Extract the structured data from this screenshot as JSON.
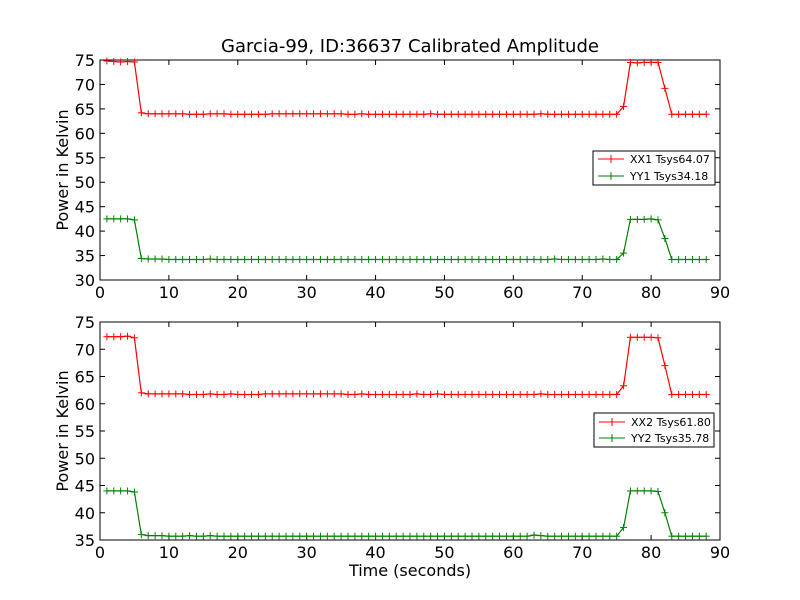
{
  "chart_data": [
    {
      "type": "line",
      "title": "Garcia-99, ID:36637 Calibrated Amplitude",
      "xlabel": "",
      "ylabel": "Power in Kelvin",
      "xlim": [
        0,
        90
      ],
      "ylim": [
        30,
        75
      ],
      "xticks": [
        "0",
        "10",
        "20",
        "30",
        "40",
        "50",
        "60",
        "70",
        "80",
        "90"
      ],
      "yticks": [
        "30",
        "35",
        "40",
        "45",
        "50",
        "55",
        "60",
        "65",
        "70",
        "75"
      ],
      "legend_position": "center-right",
      "series": [
        {
          "name": "XX1 Tsys64.07",
          "color": "#ff0000",
          "x": [
            1,
            2,
            3,
            4,
            5,
            6,
            7,
            8,
            9,
            10,
            11,
            12,
            13,
            14,
            15,
            16,
            17,
            18,
            19,
            20,
            21,
            22,
            23,
            24,
            25,
            26,
            27,
            28,
            29,
            30,
            31,
            32,
            33,
            34,
            35,
            36,
            37,
            38,
            39,
            40,
            41,
            42,
            43,
            44,
            45,
            46,
            47,
            48,
            49,
            50,
            51,
            52,
            53,
            54,
            55,
            56,
            57,
            58,
            59,
            60,
            61,
            62,
            63,
            64,
            65,
            66,
            67,
            68,
            69,
            70,
            71,
            72,
            73,
            74,
            75,
            76,
            77,
            78,
            79,
            80,
            81,
            82,
            83,
            84,
            85,
            86,
            87,
            88
          ],
          "y": [
            74.8,
            74.7,
            74.6,
            74.7,
            74.6,
            64.2,
            64.0,
            64.0,
            64.0,
            64.0,
            64.0,
            64.0,
            63.9,
            63.9,
            63.9,
            64.0,
            64.0,
            64.0,
            63.9,
            63.9,
            63.9,
            63.9,
            63.9,
            63.9,
            64.0,
            64.0,
            64.0,
            64.0,
            64.0,
            64.0,
            64.0,
            64.0,
            64.0,
            64.0,
            64.0,
            63.9,
            63.9,
            64.0,
            63.9,
            63.9,
            63.9,
            63.9,
            63.9,
            63.9,
            63.9,
            63.9,
            63.9,
            64.0,
            63.9,
            63.9,
            63.9,
            63.9,
            63.9,
            63.9,
            63.9,
            63.9,
            63.9,
            63.9,
            63.9,
            63.9,
            63.9,
            63.9,
            63.9,
            64.0,
            63.9,
            63.9,
            63.9,
            63.9,
            63.9,
            63.9,
            63.9,
            63.9,
            63.9,
            63.9,
            63.9,
            65.5,
            74.5,
            74.4,
            74.5,
            74.5,
            74.5,
            69.2,
            63.9,
            63.9,
            63.9,
            63.9,
            63.9,
            63.9
          ]
        },
        {
          "name": "YY1 Tsys34.18",
          "color": "#008000",
          "x": [
            1,
            2,
            3,
            4,
            5,
            6,
            7,
            8,
            9,
            10,
            11,
            12,
            13,
            14,
            15,
            16,
            17,
            18,
            19,
            20,
            21,
            22,
            23,
            24,
            25,
            26,
            27,
            28,
            29,
            30,
            31,
            32,
            33,
            34,
            35,
            36,
            37,
            38,
            39,
            40,
            41,
            42,
            43,
            44,
            45,
            46,
            47,
            48,
            49,
            50,
            51,
            52,
            53,
            54,
            55,
            56,
            57,
            58,
            59,
            60,
            61,
            62,
            63,
            64,
            65,
            66,
            67,
            68,
            69,
            70,
            71,
            72,
            73,
            74,
            75,
            76,
            77,
            78,
            79,
            80,
            81,
            82,
            83,
            84,
            85,
            86,
            87,
            88
          ],
          "y": [
            42.5,
            42.5,
            42.5,
            42.5,
            42.3,
            34.4,
            34.3,
            34.3,
            34.3,
            34.2,
            34.2,
            34.2,
            34.2,
            34.2,
            34.2,
            34.3,
            34.2,
            34.2,
            34.2,
            34.2,
            34.2,
            34.2,
            34.2,
            34.2,
            34.2,
            34.2,
            34.2,
            34.2,
            34.2,
            34.2,
            34.2,
            34.2,
            34.2,
            34.2,
            34.2,
            34.2,
            34.2,
            34.2,
            34.2,
            34.2,
            34.2,
            34.2,
            34.2,
            34.2,
            34.2,
            34.2,
            34.2,
            34.2,
            34.2,
            34.2,
            34.2,
            34.2,
            34.2,
            34.2,
            34.2,
            34.2,
            34.2,
            34.2,
            34.2,
            34.2,
            34.2,
            34.2,
            34.2,
            34.2,
            34.2,
            34.3,
            34.2,
            34.2,
            34.2,
            34.2,
            34.2,
            34.2,
            34.3,
            34.2,
            34.2,
            35.5,
            42.4,
            42.4,
            42.4,
            42.5,
            42.3,
            38.5,
            34.2,
            34.2,
            34.2,
            34.2,
            34.2,
            34.2
          ]
        }
      ]
    },
    {
      "type": "line",
      "title": "",
      "xlabel": "Time (seconds)",
      "ylabel": "Power in Kelvin",
      "xlim": [
        0,
        90
      ],
      "ylim": [
        35,
        75
      ],
      "xticks": [
        "0",
        "10",
        "20",
        "30",
        "40",
        "50",
        "60",
        "70",
        "80",
        "90"
      ],
      "yticks": [
        "35",
        "40",
        "45",
        "50",
        "55",
        "60",
        "65",
        "70",
        "75"
      ],
      "legend_position": "center-right",
      "series": [
        {
          "name": "XX2 Tsys61.80",
          "color": "#ff0000",
          "x": [
            1,
            2,
            3,
            4,
            5,
            6,
            7,
            8,
            9,
            10,
            11,
            12,
            13,
            14,
            15,
            16,
            17,
            18,
            19,
            20,
            21,
            22,
            23,
            24,
            25,
            26,
            27,
            28,
            29,
            30,
            31,
            32,
            33,
            34,
            35,
            36,
            37,
            38,
            39,
            40,
            41,
            42,
            43,
            44,
            45,
            46,
            47,
            48,
            49,
            50,
            51,
            52,
            53,
            54,
            55,
            56,
            57,
            58,
            59,
            60,
            61,
            62,
            63,
            64,
            65,
            66,
            67,
            68,
            69,
            70,
            71,
            72,
            73,
            74,
            75,
            76,
            77,
            78,
            79,
            80,
            81,
            82,
            83,
            84,
            85,
            86,
            87,
            88
          ],
          "y": [
            72.3,
            72.3,
            72.3,
            72.4,
            72.1,
            62.0,
            61.8,
            61.8,
            61.8,
            61.8,
            61.8,
            61.8,
            61.7,
            61.7,
            61.7,
            61.8,
            61.7,
            61.7,
            61.8,
            61.7,
            61.7,
            61.7,
            61.7,
            61.8,
            61.8,
            61.8,
            61.8,
            61.8,
            61.8,
            61.8,
            61.8,
            61.8,
            61.8,
            61.8,
            61.8,
            61.7,
            61.7,
            61.8,
            61.7,
            61.7,
            61.7,
            61.7,
            61.7,
            61.7,
            61.7,
            61.8,
            61.7,
            61.7,
            61.8,
            61.7,
            61.7,
            61.7,
            61.7,
            61.7,
            61.7,
            61.7,
            61.7,
            61.7,
            61.7,
            61.7,
            61.7,
            61.7,
            61.7,
            61.8,
            61.7,
            61.7,
            61.7,
            61.7,
            61.7,
            61.7,
            61.7,
            61.7,
            61.7,
            61.7,
            61.7,
            63.3,
            72.2,
            72.2,
            72.2,
            72.2,
            72.1,
            67.0,
            61.7,
            61.7,
            61.7,
            61.7,
            61.7,
            61.7
          ]
        },
        {
          "name": "YY2 Tsys35.78",
          "color": "#008000",
          "x": [
            1,
            2,
            3,
            4,
            5,
            6,
            7,
            8,
            9,
            10,
            11,
            12,
            13,
            14,
            15,
            16,
            17,
            18,
            19,
            20,
            21,
            22,
            23,
            24,
            25,
            26,
            27,
            28,
            29,
            30,
            31,
            32,
            33,
            34,
            35,
            36,
            37,
            38,
            39,
            40,
            41,
            42,
            43,
            44,
            45,
            46,
            47,
            48,
            49,
            50,
            51,
            52,
            53,
            54,
            55,
            56,
            57,
            58,
            59,
            60,
            61,
            62,
            63,
            64,
            65,
            66,
            67,
            68,
            69,
            70,
            71,
            72,
            73,
            74,
            75,
            76,
            77,
            78,
            79,
            80,
            81,
            82,
            83,
            84,
            85,
            86,
            87,
            88
          ],
          "y": [
            44.0,
            44.0,
            44.0,
            44.0,
            43.8,
            36.0,
            35.8,
            35.8,
            35.8,
            35.7,
            35.7,
            35.7,
            35.8,
            35.7,
            35.7,
            35.8,
            35.7,
            35.7,
            35.7,
            35.7,
            35.7,
            35.7,
            35.7,
            35.7,
            35.7,
            35.7,
            35.7,
            35.7,
            35.7,
            35.7,
            35.7,
            35.7,
            35.7,
            35.7,
            35.7,
            35.7,
            35.7,
            35.7,
            35.7,
            35.7,
            35.7,
            35.7,
            35.7,
            35.7,
            35.7,
            35.7,
            35.7,
            35.7,
            35.7,
            35.7,
            35.7,
            35.7,
            35.7,
            35.7,
            35.7,
            35.7,
            35.7,
            35.7,
            35.7,
            35.7,
            35.7,
            35.7,
            35.9,
            35.8,
            35.7,
            35.7,
            35.7,
            35.7,
            35.7,
            35.7,
            35.7,
            35.7,
            35.7,
            35.7,
            35.7,
            37.3,
            44.0,
            44.0,
            44.0,
            44.0,
            43.9,
            40.0,
            35.7,
            35.7,
            35.7,
            35.7,
            35.7,
            35.7
          ]
        }
      ]
    }
  ]
}
